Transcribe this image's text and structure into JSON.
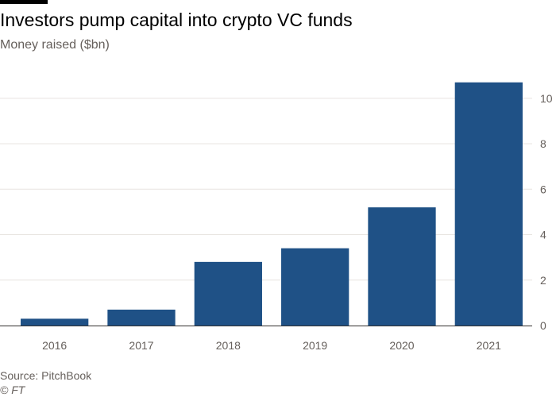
{
  "header": {
    "title": "Investors pump capital into crypto VC funds",
    "subtitle": "Money raised ($bn)"
  },
  "footer": {
    "source": "Source: PitchBook",
    "copyright": "© FT"
  },
  "chart_data": {
    "type": "bar",
    "title": "Investors pump capital into crypto VC funds",
    "subtitle": "Money raised ($bn)",
    "categories": [
      "2016",
      "2017",
      "2018",
      "2019",
      "2020",
      "2021"
    ],
    "values": [
      0.3,
      0.7,
      2.8,
      3.4,
      5.2,
      10.7
    ],
    "ylim": [
      0,
      10.9
    ],
    "yticks": [
      0,
      2,
      4,
      6,
      8,
      10
    ],
    "y_axis_side": "right",
    "grid": true,
    "legend": "none",
    "colors": {
      "bar": "#1f5186",
      "grid": "#e8e4e0",
      "axis": "#33302e"
    }
  }
}
